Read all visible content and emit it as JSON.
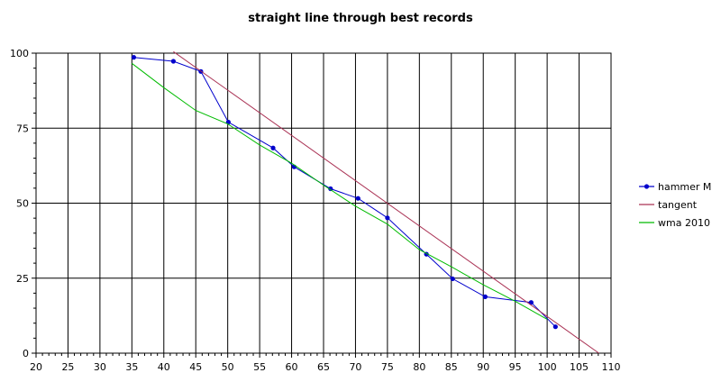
{
  "chart_data": {
    "type": "line",
    "title": "straight line through best records",
    "xlabel": "",
    "ylabel": "",
    "xlim": [
      20,
      110
    ],
    "ylim": [
      0,
      100
    ],
    "x_ticks": [
      20,
      25,
      30,
      35,
      40,
      45,
      50,
      55,
      60,
      65,
      70,
      75,
      80,
      85,
      90,
      95,
      100,
      105,
      110
    ],
    "y_ticks": [
      0,
      25,
      50,
      75,
      100
    ],
    "grid": true,
    "legend_position": "right",
    "series": [
      {
        "name": "hammer M",
        "color": "#0000cc",
        "markers": true,
        "x": [
          35.3,
          41.5,
          45.8,
          50.1,
          57.1,
          60.4,
          66.1,
          70.4,
          75.0,
          81.1,
          85.2,
          90.3,
          97.5,
          101.3
        ],
        "y": [
          98.6,
          97.3,
          93.9,
          77.0,
          68.4,
          62.1,
          54.8,
          51.6,
          45.1,
          33.0,
          24.8,
          18.8,
          16.9,
          8.8
        ]
      },
      {
        "name": "tangent",
        "color": "#aa3355",
        "markers": false,
        "x": [
          41.5,
          108.1
        ],
        "y": [
          100.5,
          0
        ]
      },
      {
        "name": "wma 2010",
        "color": "#00bb00",
        "markers": false,
        "x": [
          35.0,
          40.0,
          45.0,
          50.0,
          55.0,
          60.0,
          65.0,
          70.0,
          75.0,
          80.0,
          85.0,
          90.0,
          95.0,
          100.0
        ],
        "y": [
          96.6,
          88.5,
          80.9,
          76.4,
          69.4,
          63.3,
          56.0,
          49.0,
          43.0,
          34.5,
          28.8,
          22.8,
          17.3,
          11.3
        ]
      }
    ]
  }
}
